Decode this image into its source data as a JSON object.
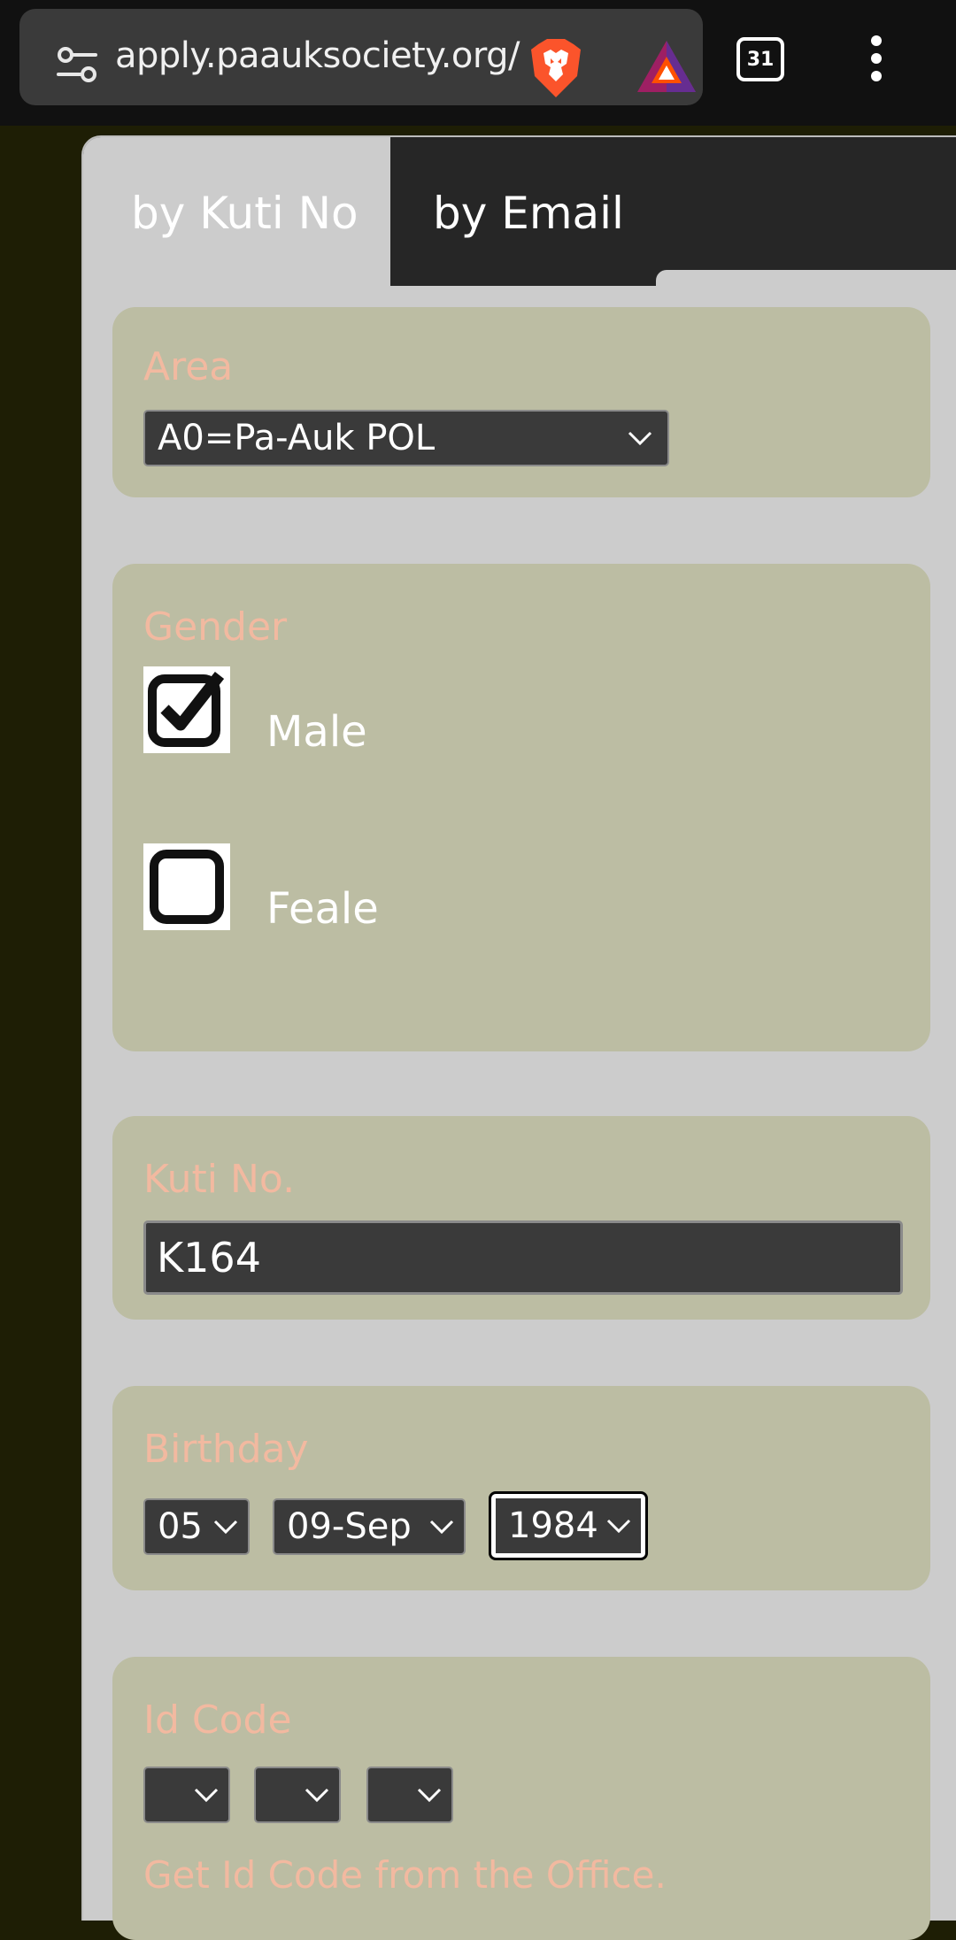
{
  "browser": {
    "url": "apply.paauksociety.org/",
    "tab_count": "31"
  },
  "tabs": {
    "kuti": "by Kuti No",
    "email": "by Email"
  },
  "area": {
    "label": "Area",
    "value": "A0=Pa-Auk POL"
  },
  "gender": {
    "label": "Gender",
    "options": [
      {
        "label": "Male",
        "checked": true
      },
      {
        "label": "Feale",
        "checked": false
      }
    ]
  },
  "kuti": {
    "label": "Kuti No.",
    "value": "K164"
  },
  "birthday": {
    "label": "Birthday",
    "day": "05",
    "month": "09-Sep",
    "year": "1984"
  },
  "id_code": {
    "label": "Id Code",
    "part1": "",
    "part2": "",
    "part3": "",
    "hint": "Get Id Code from the Office."
  }
}
